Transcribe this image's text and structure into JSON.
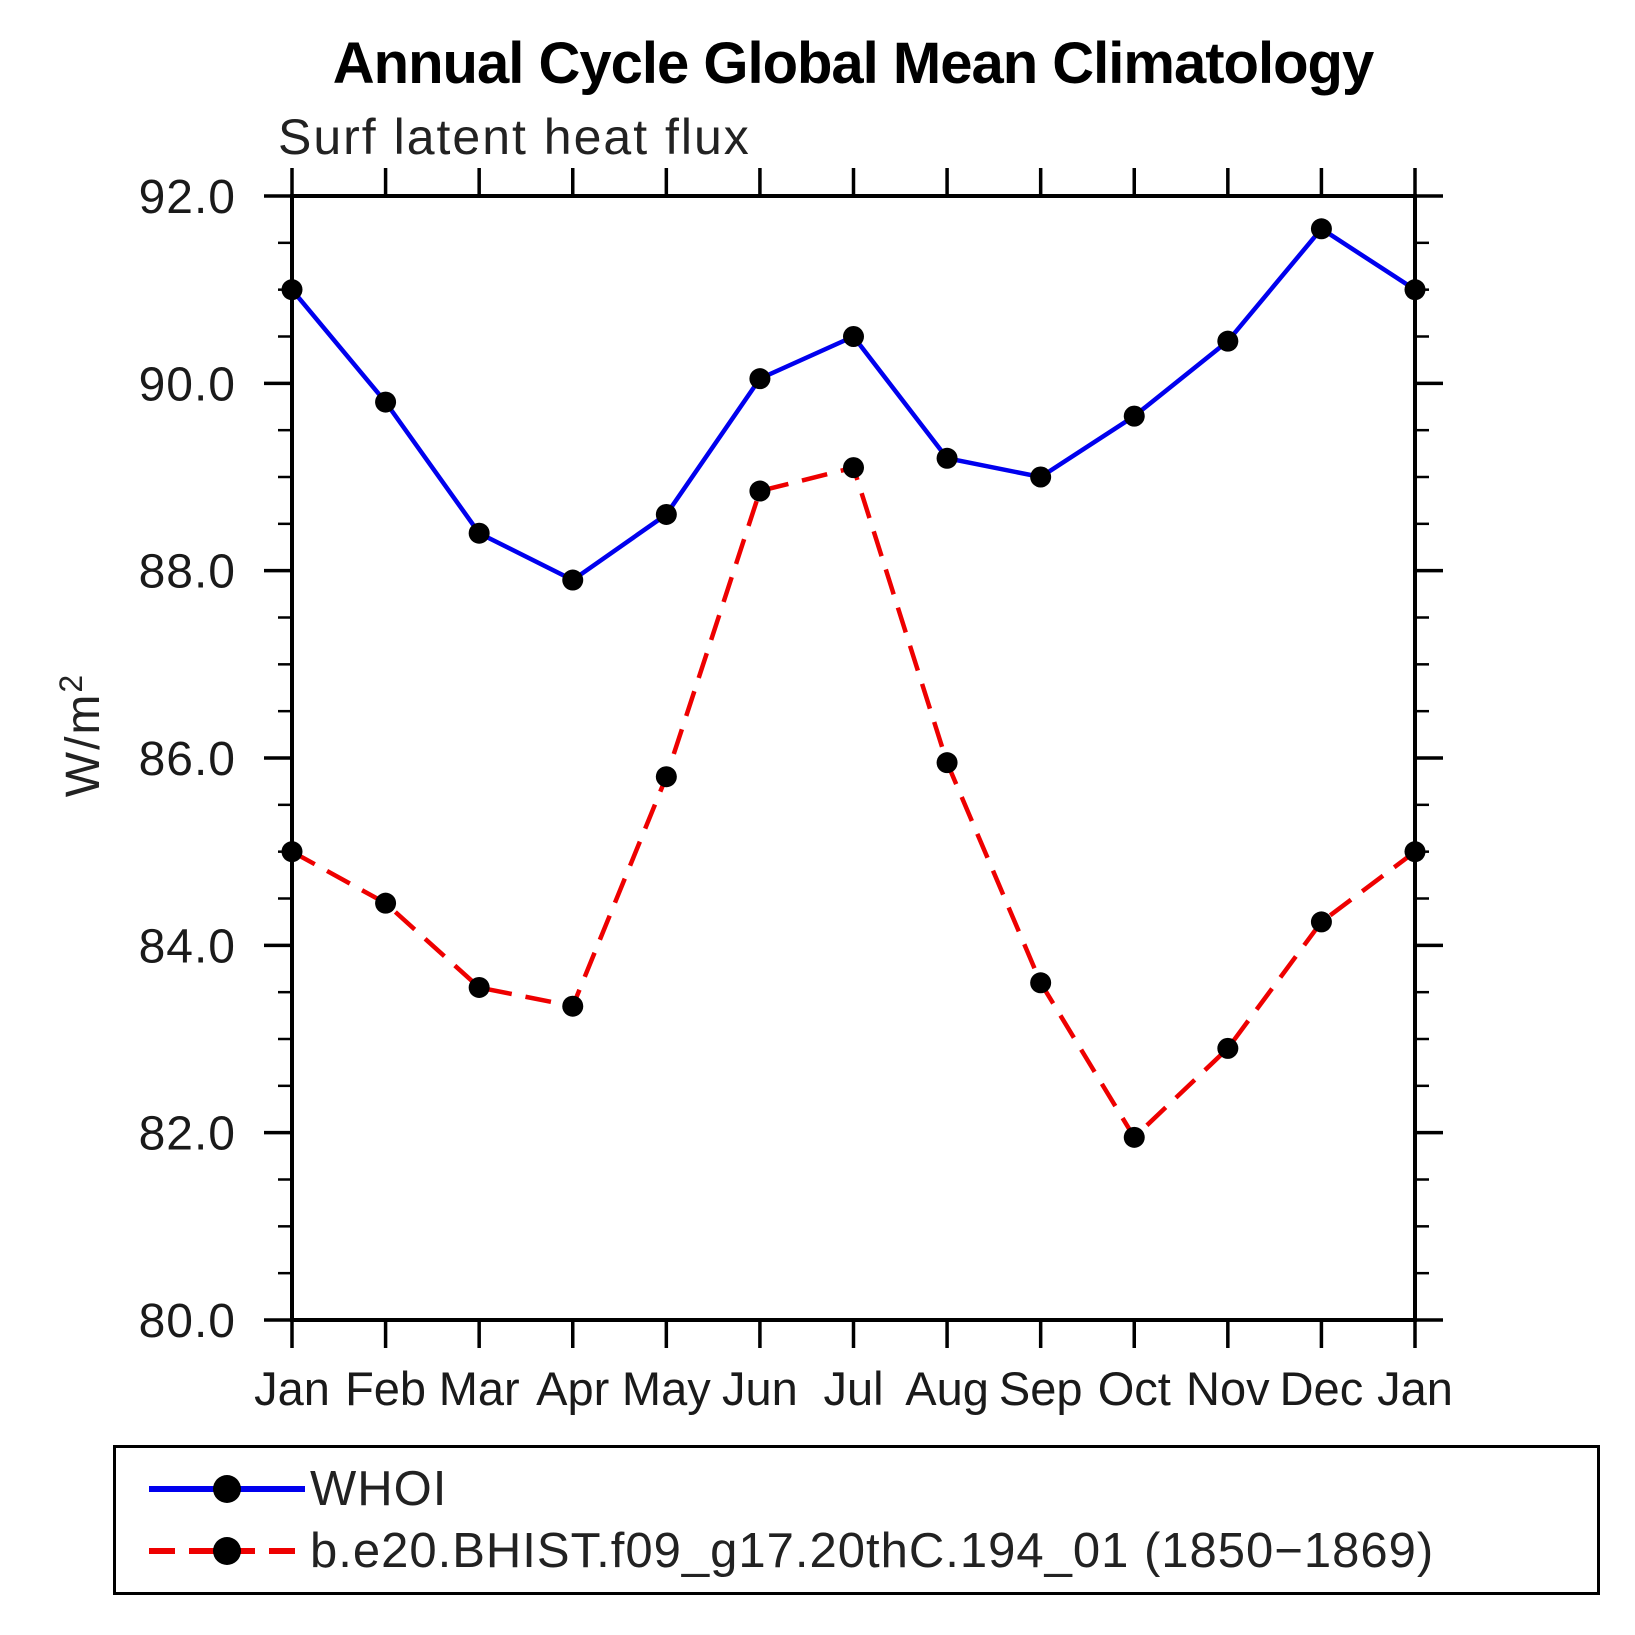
{
  "chart_data": {
    "type": "line",
    "title": "Annual Cycle Global Mean Climatology",
    "subtitle": "Surf latent heat flux",
    "ylabel_base": "W/m",
    "ylabel_sup": "2",
    "xlabel": "",
    "grid": false,
    "legend_position": "bottom-left-box",
    "categories": [
      "Jan",
      "Feb",
      "Mar",
      "Apr",
      "May",
      "Jun",
      "Jul",
      "Aug",
      "Sep",
      "Oct",
      "Nov",
      "Dec",
      "Jan"
    ],
    "ylim": [
      80.0,
      92.0
    ],
    "y_minor_step": 0.5,
    "y_ticks": [
      {
        "value": 92.0,
        "label": "92.0"
      },
      {
        "value": 90.0,
        "label": "90.0"
      },
      {
        "value": 88.0,
        "label": "88.0"
      },
      {
        "value": 86.0,
        "label": "86.0"
      },
      {
        "value": 84.0,
        "label": "84.0"
      },
      {
        "value": 82.0,
        "label": "82.0"
      },
      {
        "value": 80.0,
        "label": "80.0"
      }
    ],
    "series": [
      {
        "name": "WHOI",
        "line_color": "#0000EE",
        "line_style": "solid",
        "marker": "circle",
        "marker_color": "#000000",
        "values": [
          91.0,
          89.8,
          88.4,
          87.9,
          88.6,
          90.05,
          90.5,
          89.2,
          89.0,
          89.65,
          90.45,
          91.65,
          91.0
        ]
      },
      {
        "name": "b.e20.BHIST.f09_g17.20thC.194_01 (1850−1869)",
        "line_color": "#EE0000",
        "line_style": "dashed",
        "marker": "circle",
        "marker_color": "#000000",
        "values": [
          85.0,
          84.45,
          83.55,
          83.35,
          85.8,
          88.85,
          89.1,
          85.95,
          83.6,
          81.95,
          82.9,
          84.25,
          85.0
        ]
      }
    ]
  },
  "legend": {
    "items": [
      {
        "label": "WHOI"
      },
      {
        "label": "b.e20.BHIST.f09_g17.20thC.194_01 (1850−1869)"
      }
    ]
  }
}
